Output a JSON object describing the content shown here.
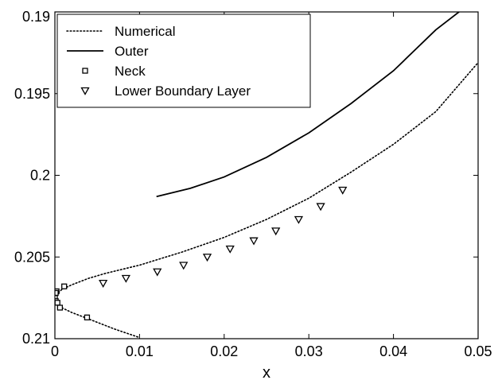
{
  "chart_data": {
    "type": "line",
    "title": "",
    "xlabel": "x",
    "ylabel": "",
    "xlim": [
      0,
      0.05
    ],
    "ylim": [
      0.21,
      0.19
    ],
    "y_axis_reversed": true,
    "grid": false,
    "legend_position": "top-left",
    "x_ticks": [
      "0",
      "0.01",
      "0.02",
      "0.03",
      "0.04",
      "0.05"
    ],
    "y_ticks": [
      "0.19",
      "0.195",
      "0.2",
      "0.205",
      "0.21"
    ],
    "series": [
      {
        "name": "Numerical",
        "style": "dotted",
        "color": "#000000",
        "x": [
          0.0098,
          0.007,
          0.004,
          0.002,
          0.0008,
          0.0002,
          0.0,
          0.0002,
          0.0008,
          0.002,
          0.004,
          0.006,
          0.01,
          0.015,
          0.02,
          0.025,
          0.03,
          0.035,
          0.04,
          0.045,
          0.05
        ],
        "y": [
          0.2099,
          0.2094,
          0.2088,
          0.2084,
          0.2081,
          0.2078,
          0.2076,
          0.2073,
          0.207,
          0.2067,
          0.2063,
          0.206,
          0.2055,
          0.2047,
          0.2038,
          0.2027,
          0.2014,
          0.1998,
          0.1981,
          0.1961,
          0.1931
        ]
      },
      {
        "name": "Outer",
        "style": "solid",
        "color": "#000000",
        "x": [
          0.012,
          0.016,
          0.02,
          0.025,
          0.03,
          0.035,
          0.04,
          0.045,
          0.048
        ],
        "y": [
          0.2013,
          0.2008,
          0.2001,
          0.1989,
          0.1974,
          0.1956,
          0.1936,
          0.1911,
          0.1899
        ]
      },
      {
        "name": "Neck",
        "style": "marker",
        "marker": "square",
        "color": "#000000",
        "x": [
          0.0002,
          0.0001,
          0.0,
          0.0001,
          0.0003,
          0.0006,
          0.0011,
          0.0038
        ],
        "y": [
          0.2071,
          0.2072,
          0.2075,
          0.2077,
          0.2078,
          0.2081,
          0.2068,
          0.2087
        ]
      },
      {
        "name": "Lower Boundary Layer",
        "style": "marker",
        "marker": "triangle-down",
        "color": "#000000",
        "x": [
          0.0057,
          0.0084,
          0.0121,
          0.0152,
          0.018,
          0.0207,
          0.0235,
          0.0261,
          0.0288,
          0.0314,
          0.034
        ],
        "y": [
          0.2066,
          0.2063,
          0.2059,
          0.2055,
          0.205,
          0.2045,
          0.204,
          0.2034,
          0.2027,
          0.2019,
          0.2009
        ]
      }
    ]
  }
}
